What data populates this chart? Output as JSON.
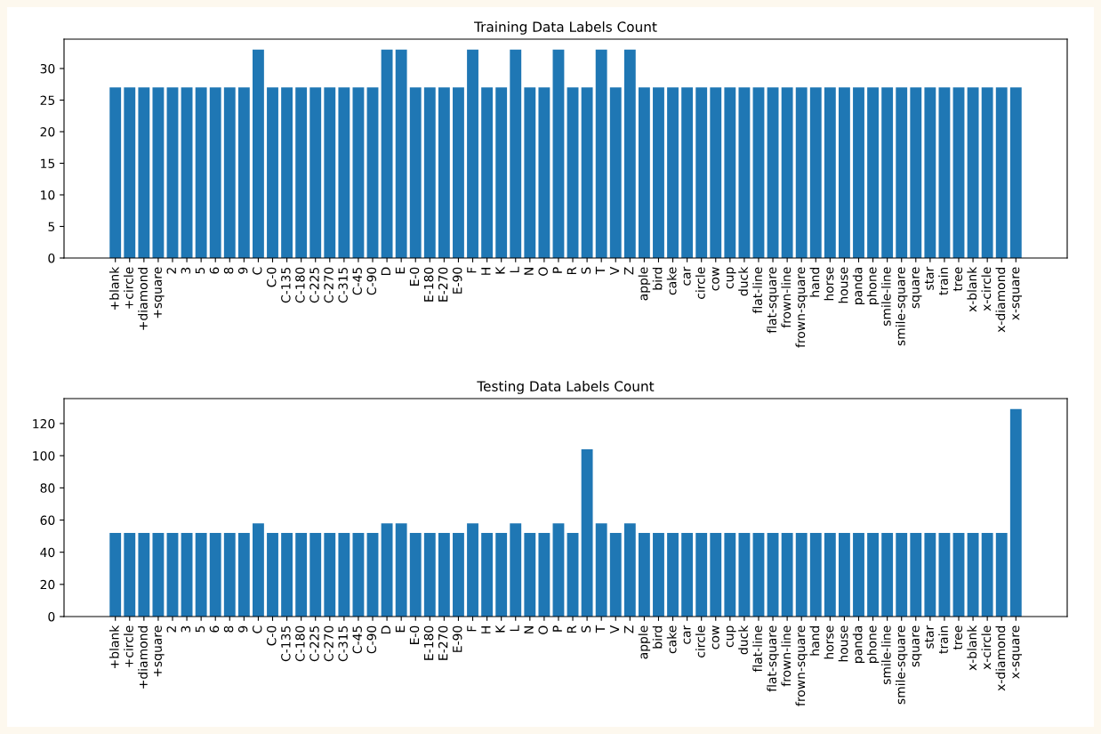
{
  "chart_data": [
    {
      "type": "bar",
      "title": "Training Data Labels Count",
      "categories": [
        "+blank",
        "+circle",
        "+diamond",
        "+square",
        "2",
        "3",
        "5",
        "6",
        "8",
        "9",
        "C",
        "C-0",
        "C-135",
        "C-180",
        "C-225",
        "C-270",
        "C-315",
        "C-45",
        "C-90",
        "D",
        "E",
        "E-0",
        "E-180",
        "E-270",
        "E-90",
        "F",
        "H",
        "K",
        "L",
        "N",
        "O",
        "P",
        "R",
        "S",
        "T",
        "V",
        "Z",
        "apple",
        "bird",
        "cake",
        "car",
        "circle",
        "cow",
        "cup",
        "duck",
        "flat-line",
        "flat-square",
        "frown-line",
        "frown-square",
        "hand",
        "horse",
        "house",
        "panda",
        "phone",
        "smile-line",
        "smile-square",
        "square",
        "star",
        "train",
        "tree",
        "x-blank",
        "x-circle",
        "x-diamond",
        "x-square"
      ],
      "values": [
        27,
        27,
        27,
        27,
        27,
        27,
        27,
        27,
        27,
        27,
        33,
        27,
        27,
        27,
        27,
        27,
        27,
        27,
        27,
        33,
        33,
        27,
        27,
        27,
        27,
        33,
        27,
        27,
        33,
        27,
        27,
        33,
        27,
        27,
        33,
        27,
        33,
        27,
        27,
        27,
        27,
        27,
        27,
        27,
        27,
        27,
        27,
        27,
        27,
        27,
        27,
        27,
        27,
        27,
        27,
        27,
        27,
        27,
        27,
        27,
        27,
        27,
        27,
        27
      ],
      "color": "#1f77b4",
      "ylim": [
        0,
        34.65
      ],
      "yticks": [
        0,
        5,
        10,
        15,
        20,
        25,
        30
      ],
      "grid": false
    },
    {
      "type": "bar",
      "title": "Testing Data Labels Count",
      "categories": [
        "+blank",
        "+circle",
        "+diamond",
        "+square",
        "2",
        "3",
        "5",
        "6",
        "8",
        "9",
        "C",
        "C-0",
        "C-135",
        "C-180",
        "C-225",
        "C-270",
        "C-315",
        "C-45",
        "C-90",
        "D",
        "E",
        "E-0",
        "E-180",
        "E-270",
        "E-90",
        "F",
        "H",
        "K",
        "L",
        "N",
        "O",
        "P",
        "R",
        "S",
        "T",
        "V",
        "Z",
        "apple",
        "bird",
        "cake",
        "car",
        "circle",
        "cow",
        "cup",
        "duck",
        "flat-line",
        "flat-square",
        "frown-line",
        "frown-square",
        "hand",
        "horse",
        "house",
        "panda",
        "phone",
        "smile-line",
        "smile-square",
        "square",
        "star",
        "train",
        "tree",
        "x-blank",
        "x-circle",
        "x-diamond",
        "x-square"
      ],
      "values": [
        52,
        52,
        52,
        52,
        52,
        52,
        52,
        52,
        52,
        52,
        58,
        52,
        52,
        52,
        52,
        52,
        52,
        52,
        52,
        58,
        58,
        52,
        52,
        52,
        52,
        58,
        52,
        52,
        58,
        52,
        52,
        58,
        52,
        104,
        58,
        52,
        58,
        52,
        52,
        52,
        52,
        52,
        52,
        52,
        52,
        52,
        52,
        52,
        52,
        52,
        52,
        52,
        52,
        52,
        52,
        52,
        52,
        52,
        52,
        52,
        52,
        52,
        52,
        129
      ],
      "color": "#1f77b4",
      "ylim": [
        0,
        135.5
      ],
      "yticks": [
        0,
        20,
        40,
        60,
        80,
        100,
        120
      ],
      "grid": false
    }
  ]
}
